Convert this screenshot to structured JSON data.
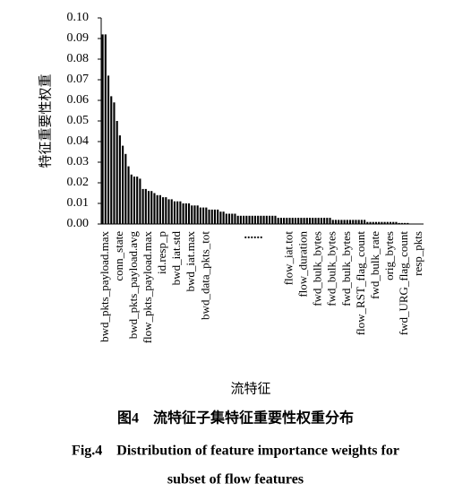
{
  "chart_data": {
    "type": "bar",
    "ylabel": "特征重要性权重",
    "xlabel": "流特征",
    "annotation": "......",
    "caption": [
      "图4　流特征子集特征重要性权重分布",
      "Fig.4　Distribution of feature importance weights for",
      "subset of flow features"
    ],
    "color": "#000000",
    "ylim": [
      0,
      0.1
    ],
    "yticks": [
      {
        "value": 0,
        "label": "0.00"
      },
      {
        "value": 0.01,
        "label": "0.01"
      },
      {
        "value": 0.02,
        "label": "0.02"
      },
      {
        "value": 0.03,
        "label": "0.03"
      },
      {
        "value": 0.04,
        "label": "0.04"
      },
      {
        "value": 0.05,
        "label": "0.05"
      },
      {
        "value": 0.06,
        "label": "0.06"
      },
      {
        "value": 0.07,
        "label": "0.07"
      },
      {
        "value": 0.08,
        "label": "0.08"
      },
      {
        "value": 0.09,
        "label": "0.09"
      },
      {
        "value": 0.1,
        "label": "0.10"
      }
    ],
    "categories": [
      null,
      "bwd_pkts_payload.max",
      null,
      null,
      null,
      null,
      "conn_state",
      null,
      null,
      null,
      null,
      "bwd_pkts_payload.avg",
      null,
      null,
      null,
      null,
      "flow_pkts_payload.max",
      null,
      null,
      null,
      null,
      "id.resp_p",
      null,
      null,
      null,
      null,
      "bwd_iat.std",
      null,
      null,
      null,
      null,
      "bwd_iat.max",
      null,
      null,
      null,
      null,
      "bwd_data_pkts_tot",
      null,
      null,
      null,
      null,
      null,
      null,
      null,
      null,
      null,
      null,
      null,
      null,
      null,
      null,
      null,
      null,
      null,
      null,
      null,
      null,
      null,
      null,
      null,
      null,
      null,
      null,
      null,
      null,
      "flow_iat.tot",
      null,
      null,
      null,
      null,
      "flow_duration",
      null,
      null,
      null,
      null,
      "fwd_bulk_bytes",
      null,
      null,
      null,
      null,
      "fwd_bulk_bytes",
      null,
      null,
      null,
      null,
      "fwd_bulk_bytes",
      null,
      null,
      null,
      null,
      "flow_RST_flag_count",
      null,
      null,
      null,
      null,
      "fwd_bulk_rate",
      null,
      null,
      null,
      null,
      "orig_bytes",
      null,
      null,
      null,
      null,
      "fwd_URG_flag_count",
      null,
      null,
      null,
      null,
      "resp_pkts",
      null
    ],
    "values": [
      0.092,
      0.092,
      0.072,
      0.062,
      0.059,
      0.05,
      0.043,
      0.038,
      0.034,
      0.028,
      0.024,
      0.023,
      0.023,
      0.022,
      0.017,
      0.017,
      0.016,
      0.016,
      0.015,
      0.014,
      0.014,
      0.013,
      0.013,
      0.012,
      0.012,
      0.011,
      0.011,
      0.011,
      0.01,
      0.01,
      0.01,
      0.009,
      0.009,
      0.009,
      0.008,
      0.008,
      0.008,
      0.007,
      0.007,
      0.007,
      0.007,
      0.006,
      0.006,
      0.005,
      0.005,
      0.005,
      0.005,
      0.004,
      0.004,
      0.004,
      0.004,
      0.004,
      0.004,
      0.004,
      0.004,
      0.004,
      0.004,
      0.004,
      0.004,
      0.004,
      0.004,
      0.003,
      0.003,
      0.003,
      0.003,
      0.003,
      0.003,
      0.003,
      0.003,
      0.003,
      0.003,
      0.003,
      0.003,
      0.003,
      0.003,
      0.003,
      0.003,
      0.003,
      0.003,
      0.003,
      0.002,
      0.002,
      0.002,
      0.002,
      0.002,
      0.002,
      0.002,
      0.002,
      0.002,
      0.002,
      0.002,
      0.002,
      0.001,
      0.001,
      0.001,
      0.001,
      0.001,
      0.001,
      0.001,
      0.001,
      0.001,
      0.001,
      0.001,
      0.0005,
      0.0005,
      0.0005,
      0.0005,
      0,
      0,
      0,
      0,
      0
    ]
  }
}
